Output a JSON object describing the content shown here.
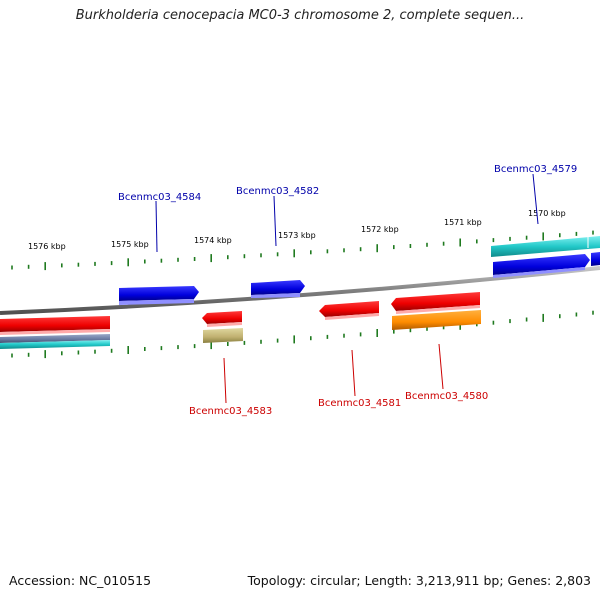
{
  "title": "Burkholderia cenocepacia MC0-3 chromosome 2, complete sequen...",
  "footer": {
    "accession": "Accession: NC_010515",
    "topology": "Topology: circular; Length: 3,213,911 bp; Genes: 2,803"
  },
  "colors": {
    "backbone": "#8a8a8a",
    "ticks": "#1f7a1f",
    "forward_label": "#0000aa",
    "reverse_label": "#cc0000"
  },
  "kbp_labels": [
    "1576 kbp",
    "1575 kbp",
    "1574 kbp",
    "1573 kbp",
    "1572 kbp",
    "1571 kbp",
    "1570 kbp"
  ],
  "genes": {
    "forward": [
      "Bcenmc03_4584",
      "Bcenmc03_4582",
      "Bcenmc03_4579"
    ],
    "reverse": [
      "Bcenmc03_4583",
      "Bcenmc03_4581",
      "Bcenmc03_4580"
    ]
  }
}
